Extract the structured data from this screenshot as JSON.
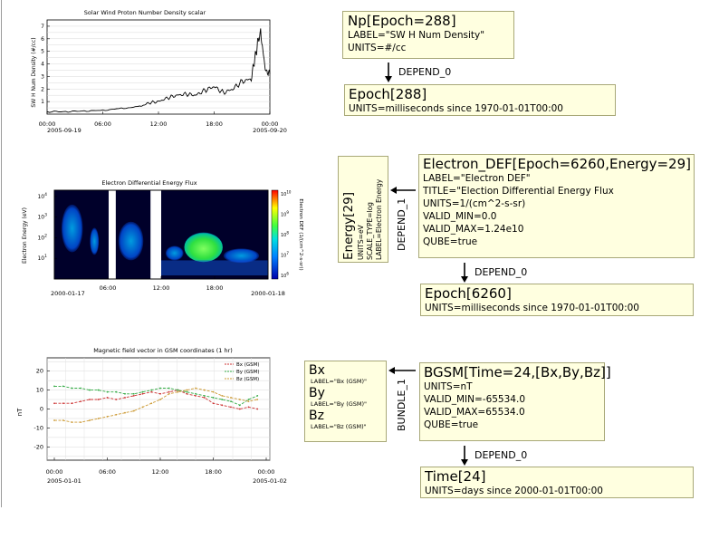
{
  "np_box": {
    "title": "Np[Epoch=288]",
    "lines": [
      "LABEL=\"SW H Num Density\"",
      "UNITS=#/cc"
    ]
  },
  "np_depend": "DEPEND_0",
  "epoch288_box": {
    "title": "Epoch[288]",
    "lines": [
      "UNITS=milliseconds since 1970-01-01T00:00"
    ]
  },
  "electron_box": {
    "title": "Electron_DEF[Epoch=6260,Energy=29]",
    "lines": [
      "LABEL=\"Electron DEF\"",
      "TITLE=\"Election Differential Energy Flux",
      "UNITS=1/(cm^2-s-sr)",
      "VALID_MIN=0.0",
      "VALID_MAX=1.24e10",
      "QUBE=true"
    ]
  },
  "energy_box": {
    "title": "Energy[29]",
    "lines": [
      "UNITS=eV",
      "SCALE_TYPE=log",
      "LABEL=Electron Energy"
    ]
  },
  "depend_1": "DEPEND_1",
  "electron_depend": "DEPEND_0",
  "epoch6260_box": {
    "title": "Epoch[6260]",
    "lines": [
      "UNITS=milliseconds since 1970-01-01T00:00"
    ]
  },
  "bgsm_box": {
    "title": "BGSM[Time=24,[Bx,By,Bz]]",
    "lines": [
      "UNITS=nT",
      "VALID_MIN=-65534.0",
      "VALID_MAX=65534.0",
      "QUBE=true"
    ]
  },
  "bundle_box": {
    "items": [
      {
        "name": "Bx",
        "label": "LABEL=\"Bx (GSM)\""
      },
      {
        "name": "By",
        "label": "LABEL=\"By (GSM)\""
      },
      {
        "name": "Bz",
        "label": "LABEL=\"Bz (GSM)\""
      }
    ]
  },
  "bundle_1": "BUNDLE_1",
  "bgsm_depend": "DEPEND_0",
  "time_box": {
    "title": "Time[24]",
    "lines": [
      "UNITS=days since 2000-01-01T00:00"
    ]
  },
  "plots": {
    "density": {
      "title": "Solar Wind Proton Number Density scalar",
      "ylabel": "SW H Num Density (#/cc)",
      "yticks": [
        "7",
        "6",
        "5",
        "4",
        "3",
        "2",
        "1"
      ],
      "xticks": [
        "00:00",
        "06:00",
        "12:00",
        "18:00",
        "00:00"
      ],
      "xdates": [
        "2005-09-19",
        "2005-09-20"
      ],
      "color": "#000000"
    },
    "spectrogram": {
      "title": "Electron Differential Energy Flux",
      "ylabel": "Electron Energy (eV)",
      "yticks": [
        "10^4",
        "10^3",
        "10^2",
        "10^1"
      ],
      "xticks": [
        "00:00",
        "06:00",
        "12:00",
        "18:00",
        "00:00"
      ],
      "xdates": [
        "2000-01-17",
        "2000-01-18"
      ],
      "cbticks": [
        "10^10",
        "10^9",
        "10^8",
        "10^7",
        "10^6"
      ],
      "cblabel": "Electron DEF (1/(cm^2-s-sr))"
    },
    "magnetic": {
      "title": "Magnetic field vector in GSM coordinates (1 hr)",
      "ylabel": "nT",
      "yticks": [
        "20",
        "10",
        "0",
        "-10",
        "-20"
      ],
      "xticks": [
        "00:00",
        "06:00",
        "12:00",
        "18:00",
        "00:00"
      ],
      "xdates": [
        "2005-01-01",
        "2005-01-02"
      ],
      "legend": [
        {
          "name": "Bx (GSM)",
          "color": "#cc3333"
        },
        {
          "name": "By (GSM)",
          "color": "#33aa44"
        },
        {
          "name": "Bz (GSM)",
          "color": "#cc9933"
        }
      ]
    }
  },
  "chart_data": [
    {
      "type": "line",
      "title": "Solar Wind Proton Number Density scalar",
      "ylabel": "SW H Num Density (#/cc)",
      "x_hours": [
        0,
        2,
        4,
        6,
        8,
        10,
        11,
        12,
        13,
        14,
        15,
        16,
        17,
        18,
        19,
        20,
        21,
        22,
        22.5,
        23,
        23.5,
        24
      ],
      "values": [
        0.2,
        0.2,
        0.25,
        0.3,
        0.45,
        0.6,
        0.9,
        1.0,
        1.3,
        1.5,
        1.6,
        1.5,
        1.9,
        2.2,
        1.7,
        2.0,
        2.6,
        2.8,
        5.0,
        6.6,
        3.5,
        3.2
      ],
      "ylim": [
        0,
        7.5
      ],
      "xlim_hours": [
        0,
        24
      ]
    },
    {
      "type": "heatmap",
      "title": "Electron Differential Energy Flux",
      "ylabel": "Electron Energy (eV)",
      "yscale": "log",
      "ylim": [
        1,
        20000
      ],
      "xlim_hours": [
        0,
        24
      ],
      "data_gaps_hours": [
        [
          6.1,
          6.9
        ],
        [
          10.8,
          12.0
        ]
      ],
      "features": [
        {
          "hours": [
            15,
            18.5
          ],
          "energy_ev": [
            10,
            120
          ],
          "level": "high"
        },
        {
          "hours": [
            1,
            3
          ],
          "energy_ev": [
            20,
            3000
          ],
          "level": "medium"
        }
      ]
    },
    {
      "type": "line",
      "title": "Magnetic field vector in GSM coordinates (1 hr)",
      "ylabel": "nT",
      "ylim": [
        -27,
        27
      ],
      "x": [
        0,
        1,
        2,
        3,
        4,
        5,
        6,
        7,
        8,
        9,
        10,
        11,
        12,
        13,
        14,
        15,
        16,
        17,
        18,
        19,
        20,
        21,
        22,
        23
      ],
      "series": [
        {
          "name": "Bx (GSM)",
          "color": "#cc3333",
          "values": [
            3,
            3,
            3,
            4,
            5,
            5,
            6,
            5,
            6,
            7,
            8,
            9,
            8,
            9,
            10,
            8,
            7,
            6,
            3,
            2,
            1,
            0,
            1,
            0
          ]
        },
        {
          "name": "By (GSM)",
          "color": "#33aa44",
          "values": [
            12,
            12,
            11,
            11,
            10,
            10,
            9,
            9,
            8,
            8,
            9,
            10,
            11,
            11,
            10,
            9,
            8,
            7,
            6,
            5,
            4,
            2,
            5,
            7
          ]
        },
        {
          "name": "Bz (GSM)",
          "color": "#cc9933",
          "values": [
            -6,
            -6,
            -7,
            -7,
            -6,
            -5,
            -4,
            -3,
            -2,
            -1,
            1,
            3,
            5,
            8,
            9,
            10,
            11,
            10,
            9,
            7,
            6,
            5,
            4,
            5
          ]
        }
      ]
    }
  ]
}
